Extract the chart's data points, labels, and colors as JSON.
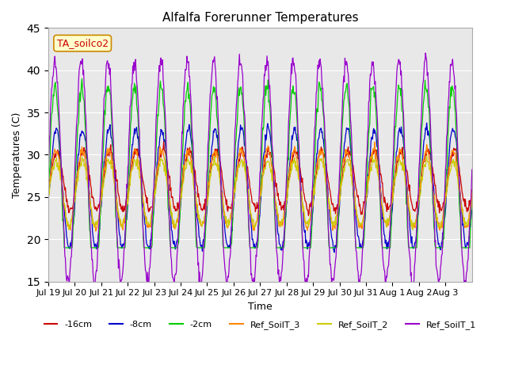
{
  "title": "Alfalfa Forerunner Temperatures",
  "xlabel": "Time",
  "ylabel": "Temperatures (C)",
  "ylim": [
    15,
    45
  ],
  "bg_color": "#e8e8e8",
  "fig_color": "#ffffff",
  "legend_label": "TA_soilco2",
  "series": [
    {
      "label": "-16cm",
      "color": "#cc0000"
    },
    {
      "label": "-8cm",
      "color": "#0000cc"
    },
    {
      "label": "-2cm",
      "color": "#00cc00"
    },
    {
      "label": "Ref_SoilT_3",
      "color": "#ff8800"
    },
    {
      "label": "Ref_SoilT_2",
      "color": "#cccc00"
    },
    {
      "label": "Ref_SoilT_1",
      "color": "#9900cc"
    }
  ],
  "xtick_labels": [
    "Jul 19",
    "Jul 20",
    "Jul 21",
    "Jul 22",
    "Jul 23",
    "Jul 24",
    "Jul 25",
    "Jul 26",
    "Jul 27",
    "Jul 28",
    "Jul 29",
    "Jul 30",
    "Jul 31",
    "Aug 1",
    "Aug 2",
    "Aug 3"
  ],
  "n_days": 16,
  "points_per_day": 48
}
